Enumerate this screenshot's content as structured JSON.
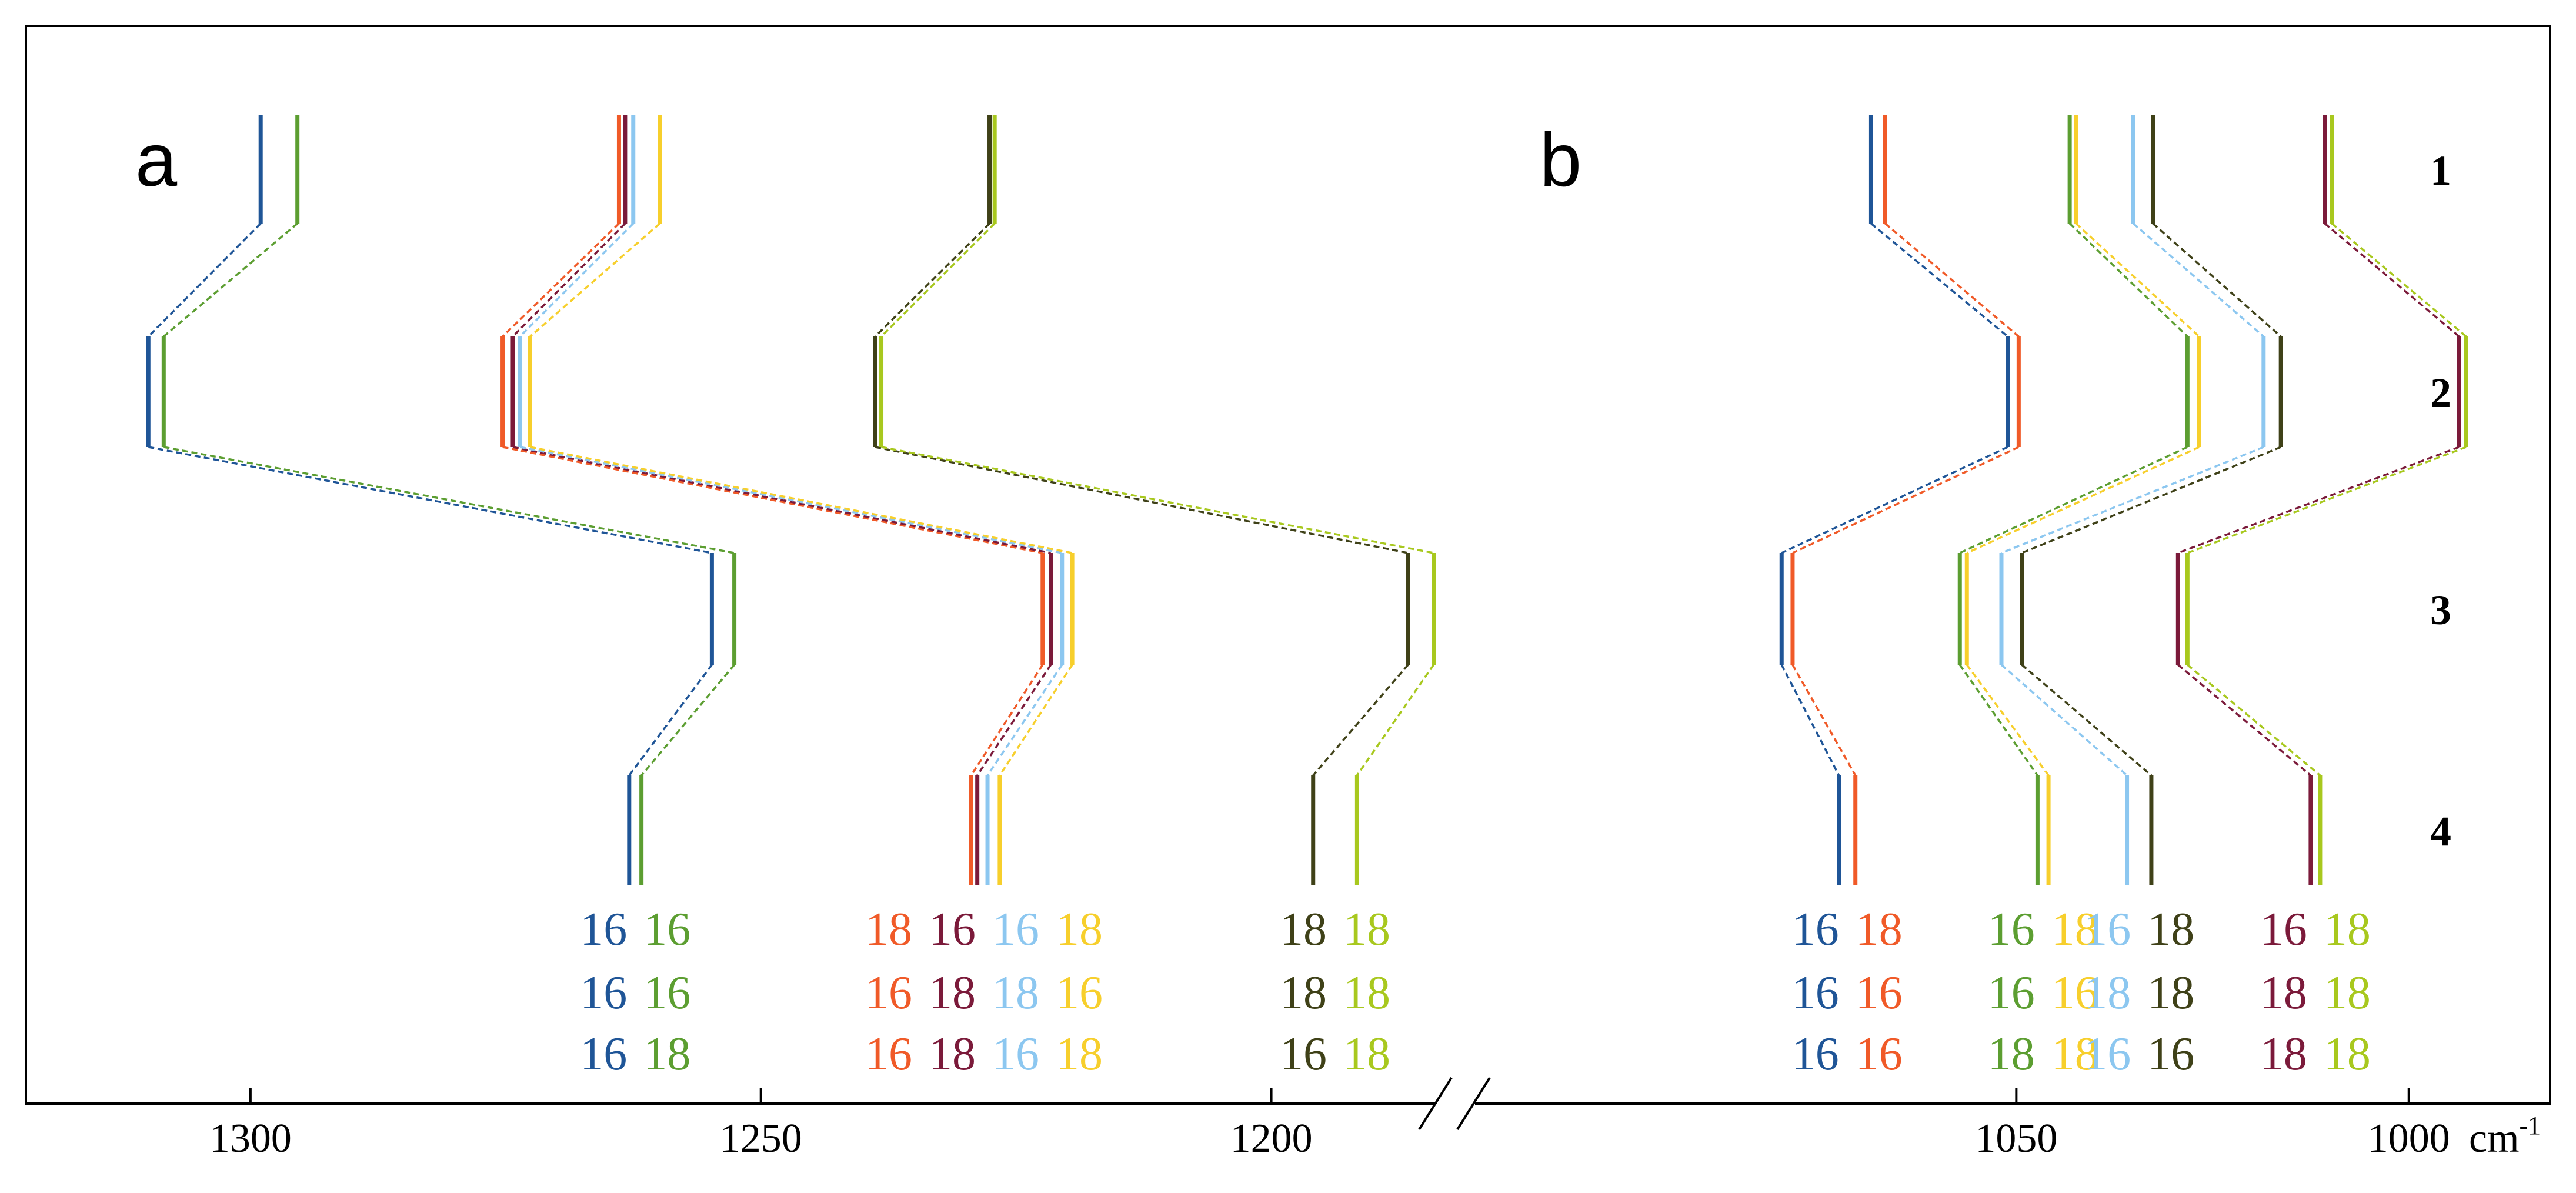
{
  "chart_data": {
    "type": "line",
    "x_unit": "cm",
    "x_unit_exponent": "-1",
    "rows": [
      "1",
      "2",
      "3",
      "4"
    ],
    "panels": [
      {
        "label": "a",
        "x_ticks": [
          "1300",
          "1250",
          "1200"
        ],
        "xlim": [
          1322,
          1182
        ],
        "groups": [
          {
            "series": [
              {
                "color": "#1f5597",
                "positions": [
                  1299,
                  1310,
                  1254.8,
                  1262.9
                ],
                "iso": [
                  "16",
                  "16",
                  "16"
                ]
              },
              {
                "color": "#5c9e31",
                "positions": [
                  1295.4,
                  1308.5,
                  1252.6,
                  1261.7
                ],
                "iso": [
                  "16",
                  "16",
                  "18"
                ]
              }
            ]
          },
          {
            "series": [
              {
                "color": "#f05a28",
                "positions": [
                  1263.9,
                  1275.3,
                  1222.4,
                  1229.4
                ],
                "iso": [
                  "18",
                  "16",
                  "16"
                ]
              },
              {
                "color": "#7b1a3a",
                "positions": [
                  1263.3,
                  1274.3,
                  1221.6,
                  1228.8
                ],
                "iso": [
                  "16",
                  "18",
                  "18"
                ]
              },
              {
                "color": "#8cc7f0",
                "positions": [
                  1262.5,
                  1273.6,
                  1220.5,
                  1227.8
                ],
                "iso": [
                  "16",
                  "18",
                  "16"
                ]
              },
              {
                "color": "#f7cf2c",
                "positions": [
                  1259.9,
                  1272.6,
                  1219.5,
                  1226.6
                ],
                "iso": [
                  "18",
                  "16",
                  "18"
                ]
              }
            ]
          },
          {
            "series": [
              {
                "color": "#3f4118",
                "positions": [
                  1227.6,
                  1238.8,
                  1186.6,
                  1195.9
                ],
                "iso": [
                  "18",
                  "18",
                  "16"
                ]
              },
              {
                "color": "#a8c81e",
                "positions": [
                  1227.1,
                  1238.2,
                  1184.1,
                  1191.6
                ],
                "iso": [
                  "18",
                  "18",
                  "18"
                ]
              }
            ]
          }
        ]
      },
      {
        "label": "b",
        "x_ticks": [
          "1050",
          "1000"
        ],
        "xlim": [
          1121.5,
          982
        ],
        "groups": [
          {
            "series": [
              {
                "color": "#1f5597",
                "positions": [
                  1068.5,
                  1051.1,
                  1079.9,
                  1072.6
                ],
                "iso": [
                  "16",
                  "16",
                  "16"
                ]
              },
              {
                "color": "#f05a28",
                "positions": [
                  1066.7,
                  1049.7,
                  1078.5,
                  1070.5
                ],
                "iso": [
                  "18",
                  "16",
                  "16"
                ]
              }
            ]
          },
          {
            "series": [
              {
                "color": "#5c9e31",
                "positions": [
                  1043.2,
                  1028.2,
                  1057.2,
                  1047.3
                ],
                "iso": [
                  "16",
                  "16",
                  "18"
                ]
              },
              {
                "color": "#f7cf2c",
                "positions": [
                  1042.4,
                  1026.7,
                  1056.3,
                  1045.9
                ],
                "iso": [
                  "18",
                  "16",
                  "18"
                ]
              }
            ]
          },
          {
            "series": [
              {
                "color": "#8cc7f0",
                "positions": [
                  1035.1,
                  1018.5,
                  1051.9,
                  1035.9
                ],
                "iso": [
                  "16",
                  "18",
                  "16"
                ]
              },
              {
                "color": "#3f4118",
                "positions": [
                  1032.6,
                  1016.3,
                  1049.3,
                  1032.8
                ],
                "iso": [
                  "18",
                  "18",
                  "16"
                ]
              }
            ]
          },
          {
            "series": [
              {
                "color": "#7b1a3a",
                "positions": [
                  1010.7,
                  993.6,
                  1029.4,
                  1012.5
                ],
                "iso": [
                  "16",
                  "18",
                  "18"
                ]
              },
              {
                "color": "#a8c81e",
                "positions": [
                  1009.8,
                  992.7,
                  1028.2,
                  1011.3
                ],
                "iso": [
                  "18",
                  "18",
                  "18"
                ]
              }
            ]
          }
        ]
      }
    ]
  }
}
